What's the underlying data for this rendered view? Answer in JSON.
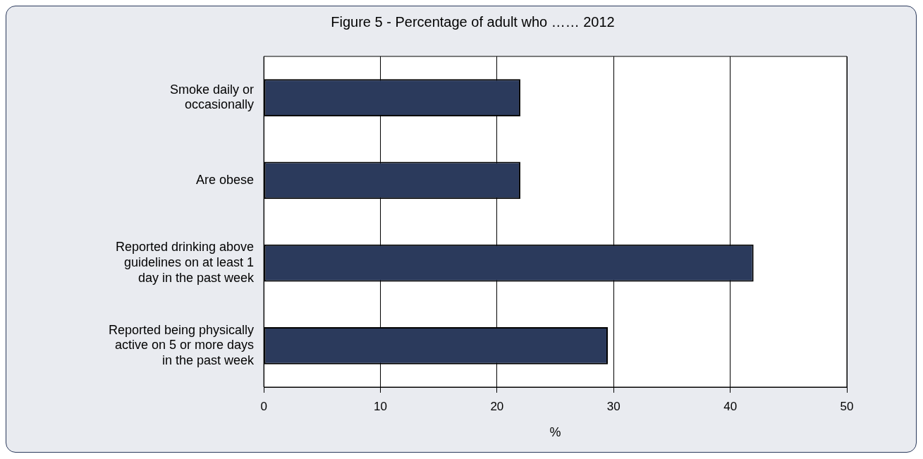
{
  "chart_data": {
    "type": "bar",
    "orientation": "horizontal",
    "title": "Figure 5 - Percentage of adult who …… 2012",
    "xlabel": "%",
    "categories": [
      "Smoke daily or occasionally",
      "Are obese",
      "Reported drinking above guidelines on at least 1 day in the past week",
      "Reported being physically active on 5 or more days in the past week"
    ],
    "values": [
      22,
      22,
      42,
      29.5
    ],
    "color": "#2b3a5c",
    "xlim": [
      0,
      50
    ],
    "xticks": [
      0,
      10,
      20,
      30,
      40,
      50
    ],
    "grid": "x",
    "legend": false
  }
}
